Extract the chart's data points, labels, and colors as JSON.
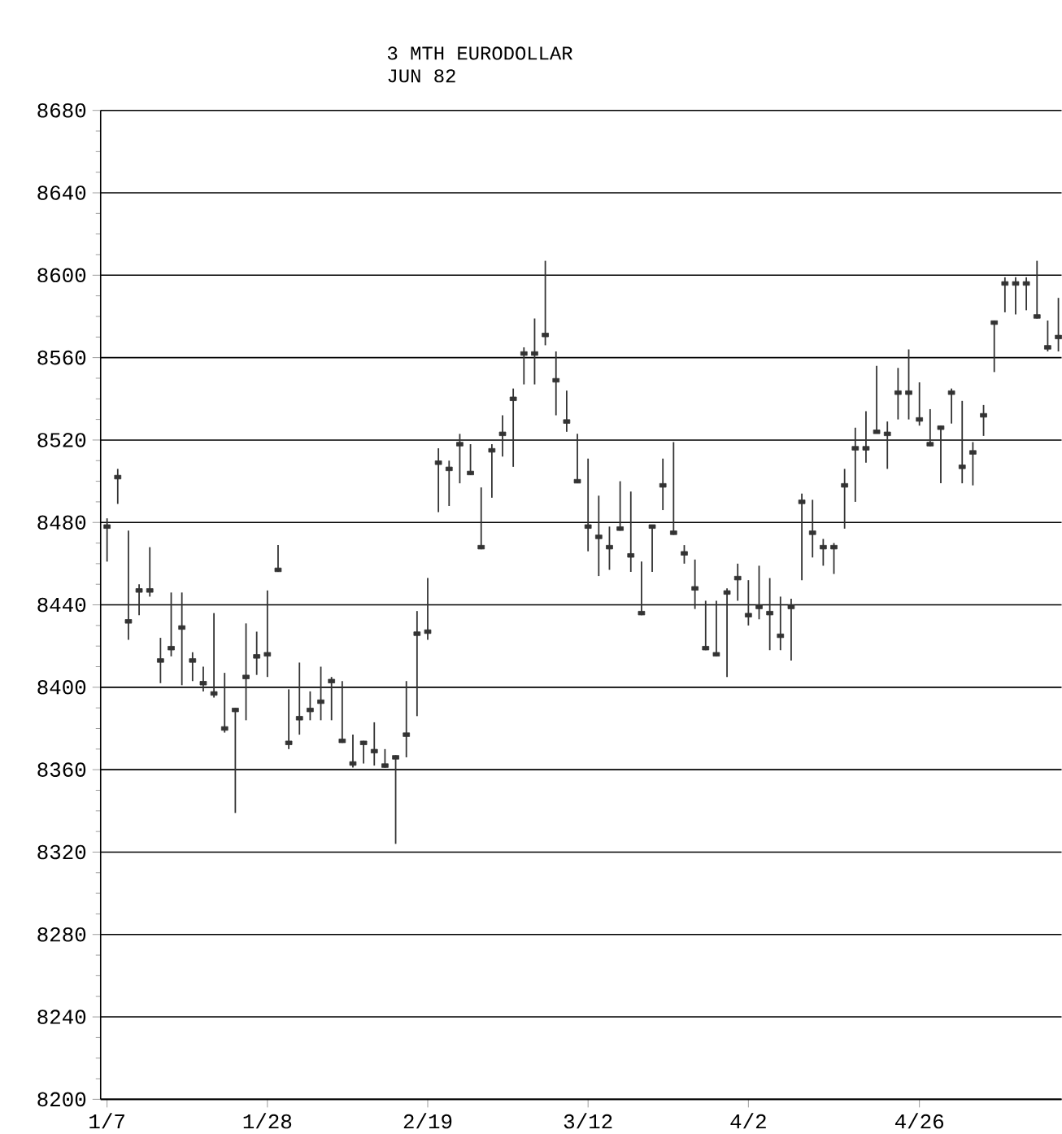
{
  "chart_data": {
    "type": "candlestick",
    "title": "3 MTH EURODOLLAR",
    "subtitle": "JUN 82",
    "categories": [
      "1/7",
      null,
      null,
      null,
      null,
      null,
      null,
      null,
      null,
      null,
      null,
      null,
      null,
      null,
      null,
      "1/28",
      null,
      null,
      null,
      null,
      null,
      null,
      null,
      null,
      null,
      null,
      null,
      null,
      null,
      null,
      "2/19",
      null,
      null,
      null,
      null,
      null,
      null,
      null,
      null,
      null,
      null,
      null,
      null,
      null,
      null,
      "3/12",
      null,
      null,
      null,
      null,
      null,
      null,
      null,
      null,
      null,
      null,
      null,
      null,
      null,
      null,
      "4/2",
      null,
      null,
      null,
      null,
      null,
      null,
      null,
      null,
      null,
      null,
      null,
      null,
      null,
      null,
      null,
      "4/26",
      null,
      null,
      null,
      null,
      null,
      null,
      null,
      null,
      null,
      null,
      null,
      null,
      null
    ],
    "ohlc": [
      [
        8478,
        8482,
        8461,
        8478
      ],
      [
        8502,
        8506,
        8489,
        8502
      ],
      [
        8432,
        8476,
        8423,
        8432
      ],
      [
        8447,
        8450,
        8435,
        8447
      ],
      [
        8447,
        8468,
        8444,
        8447
      ],
      [
        8413,
        8424,
        8402,
        8413
      ],
      [
        8419,
        8446,
        8415,
        8419
      ],
      [
        8429,
        8446,
        8401,
        8429
      ],
      [
        8413,
        8417,
        8403,
        8413
      ],
      [
        8402,
        8410,
        8398,
        8402
      ],
      [
        8397,
        8436,
        8395,
        8397
      ],
      [
        8380,
        8407,
        8378,
        8380
      ],
      [
        8389,
        8390,
        8339,
        8389
      ],
      [
        8405,
        8431,
        8384,
        8405
      ],
      [
        8415,
        8427,
        8406,
        8415
      ],
      [
        8416,
        8447,
        8405,
        8416
      ],
      [
        8457,
        8469,
        8456,
        8457
      ],
      [
        8373,
        8399,
        8370,
        8373
      ],
      [
        8385,
        8412,
        8377,
        8385
      ],
      [
        8389,
        8398,
        8384,
        8389
      ],
      [
        8393,
        8410,
        8384,
        8393
      ],
      [
        8403,
        8405,
        8384,
        8403
      ],
      [
        8374,
        8403,
        8373,
        8374
      ],
      [
        8363,
        8377,
        8361,
        8363
      ],
      [
        8373,
        8374,
        8363,
        8373
      ],
      [
        8369,
        8383,
        8362,
        8369
      ],
      [
        8362,
        8370,
        8361,
        8362
      ],
      [
        8366,
        8367,
        8324,
        8366
      ],
      [
        8377,
        8403,
        8366,
        8377
      ],
      [
        8426,
        8437,
        8386,
        8426
      ],
      [
        8427,
        8453,
        8423,
        8427
      ],
      [
        8509,
        8516,
        8485,
        8509
      ],
      [
        8506,
        8510,
        8488,
        8506
      ],
      [
        8518,
        8523,
        8499,
        8518
      ],
      [
        8504,
        8518,
        8503,
        8504
      ],
      [
        8468,
        8497,
        8467,
        8468
      ],
      [
        8515,
        8518,
        8492,
        8515
      ],
      [
        8523,
        8532,
        8512,
        8523
      ],
      [
        8540,
        8545,
        8507,
        8540
      ],
      [
        8562,
        8565,
        8547,
        8562
      ],
      [
        8562,
        8579,
        8547,
        8562
      ],
      [
        8571,
        8607,
        8566,
        8571
      ],
      [
        8549,
        8563,
        8532,
        8549
      ],
      [
        8529,
        8544,
        8524,
        8529
      ],
      [
        8500,
        8523,
        8499,
        8500
      ],
      [
        8478,
        8511,
        8466,
        8478
      ],
      [
        8473,
        8493,
        8454,
        8473
      ],
      [
        8468,
        8478,
        8457,
        8468
      ],
      [
        8477,
        8500,
        8476,
        8477
      ],
      [
        8464,
        8495,
        8456,
        8464
      ],
      [
        8436,
        8461,
        8435,
        8436
      ],
      [
        8478,
        8478,
        8456,
        8478
      ],
      [
        8498,
        8511,
        8486,
        8498
      ],
      [
        8475,
        8519,
        8474,
        8475
      ],
      [
        8465,
        8469,
        8460,
        8465
      ],
      [
        8448,
        8462,
        8438,
        8448
      ],
      [
        8419,
        8442,
        8418,
        8419
      ],
      [
        8416,
        8442,
        8415,
        8416
      ],
      [
        8446,
        8448,
        8405,
        8446
      ],
      [
        8453,
        8460,
        8442,
        8453
      ],
      [
        8435,
        8452,
        8430,
        8435
      ],
      [
        8439,
        8459,
        8433,
        8439
      ],
      [
        8436,
        8453,
        8418,
        8436
      ],
      [
        8425,
        8444,
        8418,
        8425
      ],
      [
        8439,
        8443,
        8413,
        8439
      ],
      [
        8490,
        8494,
        8452,
        8490
      ],
      [
        8475,
        8491,
        8463,
        8475
      ],
      [
        8468,
        8472,
        8459,
        8468
      ],
      [
        8468,
        8470,
        8455,
        8468
      ],
      [
        8498,
        8506,
        8477,
        8498
      ],
      [
        8516,
        8526,
        8490,
        8516
      ],
      [
        8516,
        8534,
        8509,
        8516
      ],
      [
        8524,
        8556,
        8524,
        8524
      ],
      [
        8523,
        8529,
        8506,
        8523
      ],
      [
        8543,
        8555,
        8530,
        8543
      ],
      [
        8543,
        8564,
        8530,
        8543
      ],
      [
        8530,
        8548,
        8527,
        8530
      ],
      [
        8518,
        8535,
        8517,
        8518
      ],
      [
        8526,
        8527,
        8499,
        8526
      ],
      [
        8543,
        8545,
        8528,
        8543
      ],
      [
        8507,
        8539,
        8499,
        8507
      ],
      [
        8514,
        8519,
        8498,
        8514
      ],
      [
        8532,
        8537,
        8522,
        8532
      ],
      [
        8577,
        8578,
        8553,
        8577
      ],
      [
        8596,
        8599,
        8582,
        8596
      ],
      [
        8596,
        8599,
        8581,
        8596
      ],
      [
        8596,
        8599,
        8583,
        8596
      ],
      [
        8580,
        8607,
        8579,
        8580
      ],
      [
        8565,
        8578,
        8563,
        8565
      ],
      [
        8570,
        8589,
        8563,
        8570
      ]
    ],
    "color": "#333333",
    "ylim": [
      8200,
      8680
    ],
    "yticks": [
      8200,
      8240,
      8280,
      8320,
      8360,
      8400,
      8440,
      8480,
      8520,
      8560,
      8600,
      8640,
      8680
    ],
    "grid": "y"
  }
}
